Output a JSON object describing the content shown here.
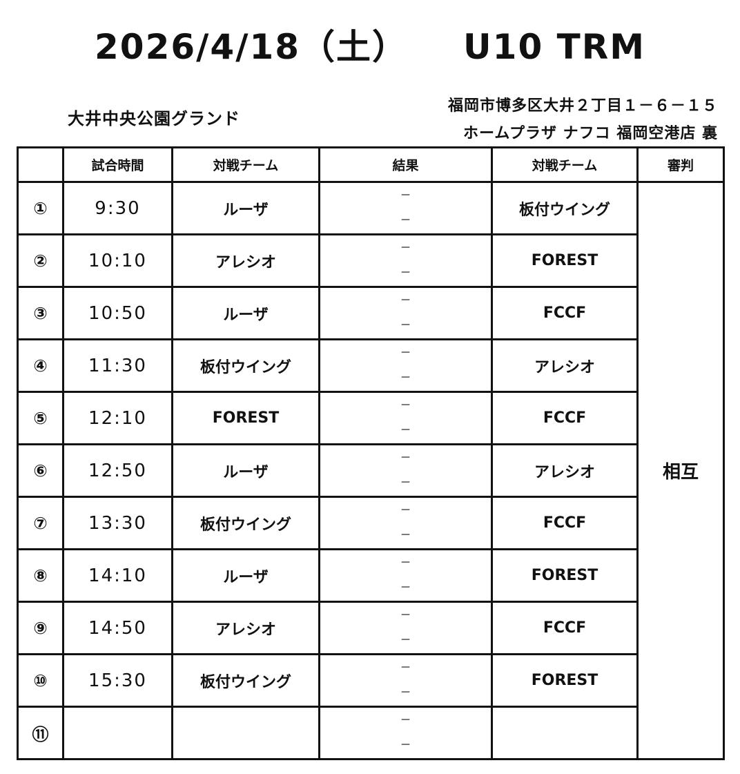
{
  "title": {
    "date": "2026/4/18（土）",
    "event": "U10 TRM"
  },
  "venue": "大井中央公園グランド",
  "address": [
    "福岡市博多区大井２丁目１－６－１５",
    "ホームプラザ ナフコ 福岡空港店 裏"
  ],
  "headers": [
    "",
    "試合時間",
    "対戦チーム",
    "結果",
    "対戦チーム",
    "審判"
  ],
  "referee": "相互",
  "result_placeholder": [
    "－",
    "－"
  ],
  "matches": [
    {
      "no": "①",
      "time": "9:30",
      "home": "ルーザ",
      "away": "板付ウイング"
    },
    {
      "no": "②",
      "time": "10:10",
      "home": "アレシオ",
      "away": "FOREST"
    },
    {
      "no": "③",
      "time": "10:50",
      "home": "ルーザ",
      "away": "FCCF"
    },
    {
      "no": "④",
      "time": "11:30",
      "home": "板付ウイング",
      "away": "アレシオ"
    },
    {
      "no": "⑤",
      "time": "12:10",
      "home": "FOREST",
      "away": "FCCF"
    },
    {
      "no": "⑥",
      "time": "12:50",
      "home": "ルーザ",
      "away": "アレシオ"
    },
    {
      "no": "⑦",
      "time": "13:30",
      "home": "板付ウイング",
      "away": "FCCF"
    },
    {
      "no": "⑧",
      "time": "14:10",
      "home": "ルーザ",
      "away": "FOREST"
    },
    {
      "no": "⑨",
      "time": "14:50",
      "home": "アレシオ",
      "away": "FCCF"
    },
    {
      "no": "⑩",
      "time": "15:30",
      "home": "板付ウイング",
      "away": "FOREST"
    },
    {
      "no": "⑪",
      "time": "",
      "home": "",
      "away": ""
    }
  ]
}
